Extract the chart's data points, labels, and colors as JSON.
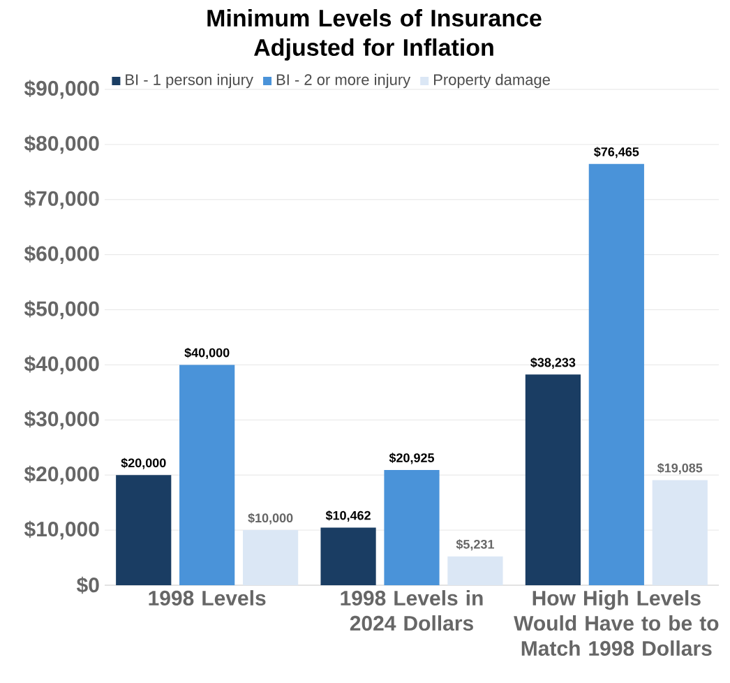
{
  "chart_data": {
    "type": "bar",
    "title": "Minimum Levels of Insurance Adjusted for Inflation",
    "categories": [
      "1998 Levels",
      "1998 Levels in 2024 Dollars",
      "How High Levels Would Have to be to Match 1998 Dollars"
    ],
    "series": [
      {
        "name": "BI - 1 person injury",
        "color": "#1a3d63",
        "values": [
          20000,
          10462,
          38233
        ],
        "value_labels": [
          "$20,000",
          "$10,462",
          "$38,233"
        ]
      },
      {
        "name": "BI - 2 or more injury",
        "color": "#4a93d9",
        "values": [
          40000,
          20925,
          76465
        ],
        "value_labels": [
          "$40,000",
          "$20,925",
          "$76,465"
        ]
      },
      {
        "name": "Property damage",
        "color": "#dbe7f5",
        "values": [
          10000,
          5231,
          19085
        ],
        "value_labels": [
          "$10,000",
          "$5,231",
          "$19,085"
        ]
      }
    ],
    "ylim": [
      0,
      90000
    ],
    "yticks": [
      {
        "value": 0,
        "label": "$0"
      },
      {
        "value": 10000,
        "label": "$10,000"
      },
      {
        "value": 20000,
        "label": "$20,000"
      },
      {
        "value": 30000,
        "label": "$30,000"
      },
      {
        "value": 40000,
        "label": "$40,000"
      },
      {
        "value": 50000,
        "label": "$50,000"
      },
      {
        "value": 60000,
        "label": "$60,000"
      },
      {
        "value": 70000,
        "label": "$70,000"
      },
      {
        "value": 80000,
        "label": "$80,000"
      },
      {
        "value": 90000,
        "label": "$90,000"
      }
    ],
    "grid": "y",
    "legend": "top left"
  }
}
